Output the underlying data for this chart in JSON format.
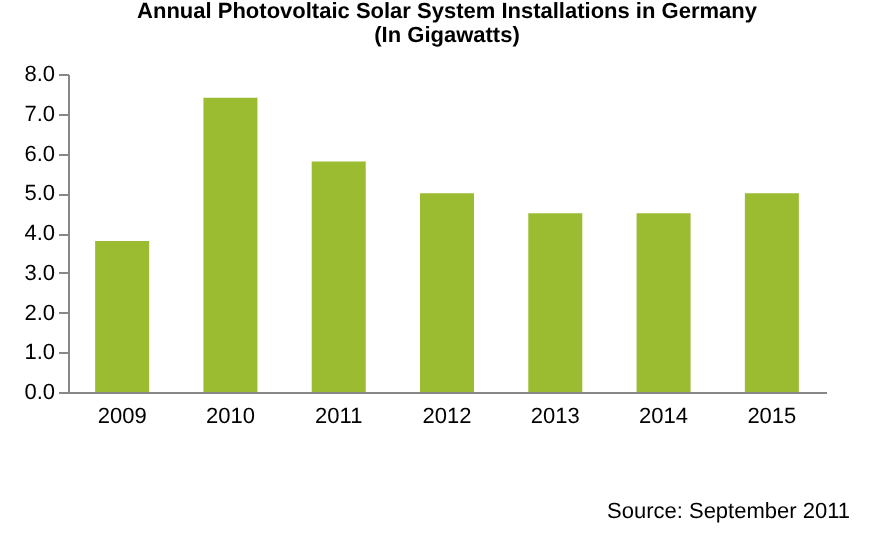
{
  "chart_data": {
    "type": "bar",
    "title": "Annual Photovoltaic Solar System Installations in Germany",
    "subtitle": "(In Gigawatts)",
    "categories": [
      "2009",
      "2010",
      "2011",
      "2012",
      "2013",
      "2014",
      "2015"
    ],
    "values": [
      3.8,
      7.4,
      5.8,
      5.0,
      4.5,
      4.5,
      5.0
    ],
    "color": "#9bbb30",
    "ylim": [
      0,
      8
    ],
    "yticks": [
      {
        "value": 0,
        "label": "0.0"
      },
      {
        "value": 1,
        "label": "1.0"
      },
      {
        "value": 2,
        "label": "2.0"
      },
      {
        "value": 3,
        "label": "3.0"
      },
      {
        "value": 4,
        "label": "4.0"
      },
      {
        "value": 5,
        "label": "5.0"
      },
      {
        "value": 6,
        "label": "6.0"
      },
      {
        "value": 7,
        "label": "7.0"
      },
      {
        "value": 8,
        "label": "8.0"
      }
    ],
    "grid": false,
    "annotations": [
      "Source: September 2011"
    ]
  }
}
